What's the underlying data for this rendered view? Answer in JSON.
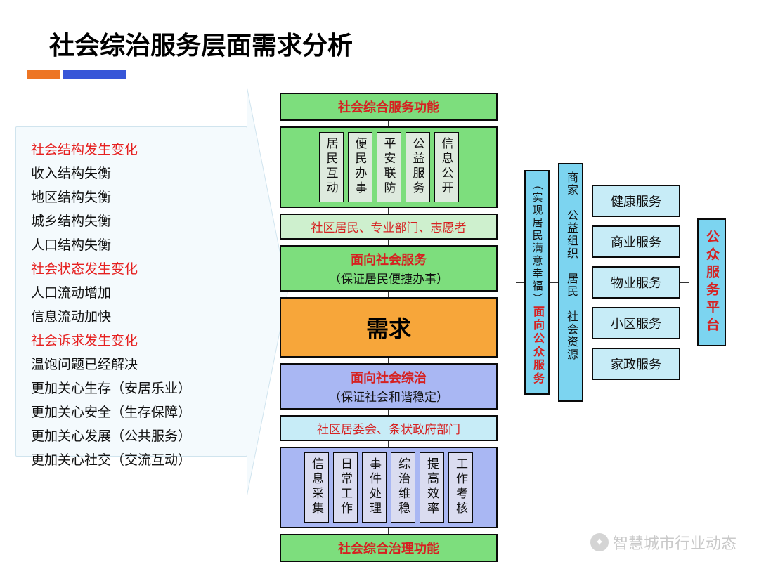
{
  "title": "社会综治服务层面需求分析",
  "accent": {
    "color1": "#ed7524",
    "color2": "#3756d8"
  },
  "arrow": {
    "bg": "#f4fafd",
    "border": "#d0e4ee",
    "lines": [
      {
        "text": "社会结构发生变化",
        "red": true
      },
      {
        "text": "收入结构失衡",
        "red": false
      },
      {
        "text": "地区结构失衡",
        "red": false
      },
      {
        "text": "城乡结构失衡",
        "red": false
      },
      {
        "text": "人口结构失衡",
        "red": false
      },
      {
        "text": "社会状态发生变化",
        "red": true
      },
      {
        "text": "人口流动增加",
        "red": false
      },
      {
        "text": "信息流动加快",
        "red": false
      },
      {
        "text": "社会诉求发生变化",
        "red": true
      },
      {
        "text": "温饱问题已经解决",
        "red": false
      },
      {
        "text": "更加关心生存（安居乐业）",
        "red": false
      },
      {
        "text": "更加关心安全（生存保障）",
        "red": false
      },
      {
        "text": "更加关心发展（公共服务）",
        "red": false
      },
      {
        "text": "更加关心社交（交流互动）",
        "red": false
      }
    ]
  },
  "center": {
    "top_header": "社会综合服务功能",
    "top_items": [
      "居民互动",
      "便民办事",
      "平安联防",
      "公益服务",
      "信息公开"
    ],
    "actors_top": "社区居民、专业部门、志愿者",
    "service_box": {
      "t1": "面向社会服务",
      "t2": "（保证居民便捷办事）"
    },
    "need": "需求",
    "govern_box": {
      "t1": "面向社会综治",
      "t2": "（保证社会和谐稳定）"
    },
    "actors_bot": "社区居委会、条状政府部门",
    "bot_items": [
      "信息采集",
      "日常工作",
      "事件处理",
      "综治维稳",
      "提高效率",
      "工作考核"
    ],
    "bot_header": "社会综合治理功能"
  },
  "right": {
    "strip1": {
      "t1": "面向公众服务",
      "t2": "（实现居民满意幸福）"
    },
    "strip2": "商家　公益组织　居民　社会资源",
    "services": [
      "健康服务",
      "商业服务",
      "物业服务",
      "小区服务",
      "家政服务"
    ],
    "platform": "公众服务平台"
  },
  "colors": {
    "green": "#7dde7d",
    "green_light": "#cef0ce",
    "purple": "#a9b7f3",
    "purple_light": "#dadcf0",
    "orange": "#f7a63a",
    "cyan": "#7cd4f0",
    "cyan_light": "#c7ecf7",
    "red_text": "#d62121",
    "border": "#0a0a0a"
  },
  "watermark": "智慧城市行业动态"
}
